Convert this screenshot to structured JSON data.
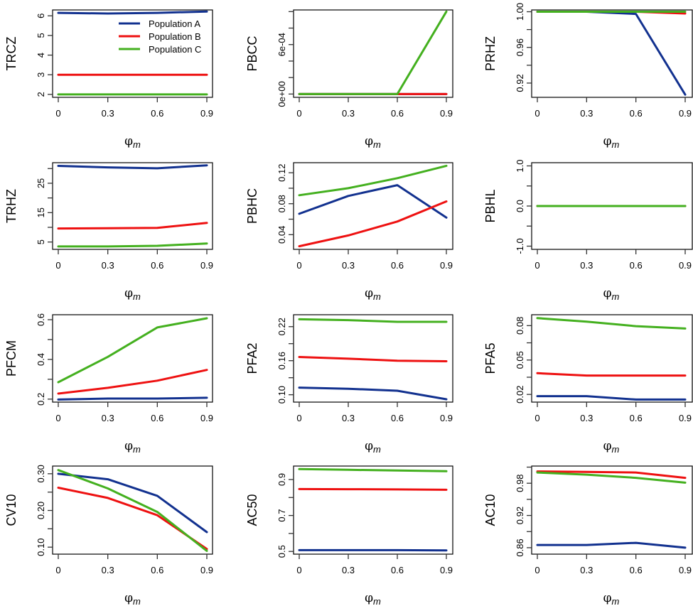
{
  "colors": {
    "Population A": "#12318f",
    "Population B": "#ee1111",
    "Population C": "#44b01f"
  },
  "legend": {
    "entries": [
      "Population A",
      "Population B",
      "Population C"
    ],
    "panel": "TRCZ",
    "position": "top-right"
  },
  "chart_data": [
    {
      "type": "line",
      "title": "",
      "ylabel": "TRCZ",
      "xlabel": "φm",
      "x": [
        0,
        0.3,
        0.6,
        0.9
      ],
      "xticks": [
        "0",
        "0.3",
        "0.6",
        "0.9"
      ],
      "ylim": [
        1.85,
        6.3
      ],
      "yticks": [
        2,
        3,
        4,
        5,
        6
      ],
      "yticklabels": [
        "2",
        "3",
        "4",
        "5",
        "6"
      ],
      "series": [
        {
          "name": "Population A",
          "values": [
            6.15,
            6.12,
            6.15,
            6.22
          ]
        },
        {
          "name": "Population B",
          "values": [
            3.0,
            3.0,
            3.0,
            3.0
          ]
        },
        {
          "name": "Population C",
          "values": [
            2.0,
            2.0,
            2.0,
            2.0
          ]
        }
      ]
    },
    {
      "type": "line",
      "title": "",
      "ylabel": "PBCC",
      "xlabel": "φm",
      "x": [
        0,
        0.3,
        0.6,
        0.9
      ],
      "xticks": [
        "0",
        "0.3",
        "0.6",
        "0.9"
      ],
      "ylim": [
        -4e-05,
        0.00102
      ],
      "yticks": [
        0,
        0.0002,
        0.0004,
        0.0006,
        0.0008,
        0.001
      ],
      "yticklabels": [
        "0e+00",
        "",
        "",
        "6e-04",
        "",
        ""
      ],
      "series": [
        {
          "name": "Population A",
          "values": [
            0,
            0,
            0,
            0
          ]
        },
        {
          "name": "Population B",
          "values": [
            0,
            0,
            0,
            0
          ]
        },
        {
          "name": "Population C",
          "values": [
            0,
            0,
            0,
            0.001
          ]
        }
      ]
    },
    {
      "type": "line",
      "title": "",
      "ylabel": "PRHZ",
      "xlabel": "φm",
      "x": [
        0,
        0.3,
        0.6,
        0.9
      ],
      "xticks": [
        "0",
        "0.3",
        "0.6",
        "0.9"
      ],
      "ylim": [
        0.904,
        1.002
      ],
      "yticks": [
        0.92,
        0.94,
        0.96,
        0.98,
        1.0
      ],
      "yticklabels": [
        "0.92",
        "",
        "0.96",
        "",
        "1.00"
      ],
      "series": [
        {
          "name": "Population A",
          "values": [
            1.0,
            1.0,
            0.9975,
            0.907
          ]
        },
        {
          "name": "Population B",
          "values": [
            1.0,
            1.0,
            1.0,
            0.998
          ]
        },
        {
          "name": "Population C",
          "values": [
            1.0,
            1.0,
            1.0,
            1.0
          ]
        }
      ]
    },
    {
      "type": "line",
      "title": "",
      "ylabel": "TRHZ",
      "xlabel": "φm",
      "x": [
        0,
        0.3,
        0.6,
        0.9
      ],
      "xticks": [
        "0",
        "0.3",
        "0.6",
        "0.9"
      ],
      "ylim": [
        2.5,
        32.0
      ],
      "yticks": [
        5,
        10,
        15,
        20,
        25,
        30
      ],
      "yticklabels": [
        "5",
        "",
        "15",
        "",
        "25",
        ""
      ],
      "series": [
        {
          "name": "Population A",
          "values": [
            30.9,
            30.4,
            30.1,
            31.1
          ]
        },
        {
          "name": "Population B",
          "values": [
            9.6,
            9.7,
            9.8,
            11.5
          ]
        },
        {
          "name": "Population C",
          "values": [
            3.5,
            3.5,
            3.7,
            4.5
          ]
        }
      ]
    },
    {
      "type": "line",
      "title": "",
      "ylabel": "PBHC",
      "xlabel": "φm",
      "x": [
        0,
        0.3,
        0.6,
        0.9
      ],
      "xticks": [
        "0",
        "0.3",
        "0.6",
        "0.9"
      ],
      "ylim": [
        0.021,
        0.133
      ],
      "yticks": [
        0.04,
        0.06,
        0.08,
        0.1,
        0.12
      ],
      "yticklabels": [
        "0.04",
        "",
        "0.08",
        "",
        "0.12"
      ],
      "series": [
        {
          "name": "Population A",
          "values": [
            0.067,
            0.09,
            0.104,
            0.062
          ]
        },
        {
          "name": "Population B",
          "values": [
            0.025,
            0.039,
            0.057,
            0.083
          ]
        },
        {
          "name": "Population C",
          "values": [
            0.091,
            0.1,
            0.113,
            0.129
          ]
        }
      ]
    },
    {
      "type": "line",
      "title": "",
      "ylabel": "PBHL",
      "xlabel": "φm",
      "x": [
        0,
        0.3,
        0.6,
        0.9
      ],
      "xticks": [
        "0",
        "0.3",
        "0.6",
        "0.9"
      ],
      "ylim": [
        -1.08,
        1.08
      ],
      "yticks": [
        -1.0,
        -0.5,
        0.0,
        0.5,
        1.0
      ],
      "yticklabels": [
        "-1.0",
        "",
        "0.0",
        "",
        "1.0"
      ],
      "series": [
        {
          "name": "Population A",
          "values": [
            0,
            0,
            0,
            0
          ]
        },
        {
          "name": "Population B",
          "values": [
            0,
            0,
            0,
            0
          ]
        },
        {
          "name": "Population C",
          "values": [
            0,
            0,
            0,
            0
          ]
        }
      ]
    },
    {
      "type": "line",
      "title": "",
      "ylabel": "PFCM",
      "xlabel": "φm",
      "x": [
        0,
        0.3,
        0.6,
        0.9
      ],
      "xticks": [
        "0",
        "0.3",
        "0.6",
        "0.9"
      ],
      "ylim": [
        0.185,
        0.625
      ],
      "yticks": [
        0.2,
        0.3,
        0.4,
        0.5,
        0.6
      ],
      "yticklabels": [
        "0.2",
        "",
        "0.4",
        "",
        "0.6"
      ],
      "series": [
        {
          "name": "Population A",
          "values": [
            0.198,
            0.203,
            0.203,
            0.207
          ]
        },
        {
          "name": "Population B",
          "values": [
            0.228,
            0.257,
            0.293,
            0.347
          ]
        },
        {
          "name": "Population C",
          "values": [
            0.285,
            0.413,
            0.561,
            0.607
          ]
        }
      ]
    },
    {
      "type": "line",
      "title": "",
      "ylabel": "PFA2",
      "xlabel": "φm",
      "x": [
        0,
        0.3,
        0.6,
        0.9
      ],
      "xticks": [
        "0",
        "0.3",
        "0.6",
        "0.9"
      ],
      "ylim": [
        0.087,
        0.241
      ],
      "yticks": [
        0.1,
        0.13,
        0.16,
        0.19,
        0.22
      ],
      "yticklabels": [
        "0.10",
        "",
        "0.16",
        "",
        "0.22"
      ],
      "series": [
        {
          "name": "Population A",
          "values": [
            0.1125,
            0.1105,
            0.107,
            0.092
          ]
        },
        {
          "name": "Population B",
          "values": [
            0.1665,
            0.1635,
            0.16,
            0.159
          ]
        },
        {
          "name": "Population C",
          "values": [
            0.233,
            0.2315,
            0.2285,
            0.2285
          ]
        }
      ]
    },
    {
      "type": "line",
      "title": "",
      "ylabel": "PFA5",
      "xlabel": "φm",
      "x": [
        0,
        0.3,
        0.6,
        0.9
      ],
      "xticks": [
        "0",
        "0.3",
        "0.6",
        "0.9"
      ],
      "ylim": [
        0.0133,
        0.0895
      ],
      "yticks": [
        0.02,
        0.035,
        0.05,
        0.065,
        0.08
      ],
      "yticklabels": [
        "0.02",
        "",
        "0.05",
        "",
        "0.08"
      ],
      "series": [
        {
          "name": "Population A",
          "values": [
            0.0185,
            0.0185,
            0.0155,
            0.0155
          ]
        },
        {
          "name": "Population B",
          "values": [
            0.0385,
            0.0365,
            0.0365,
            0.0365
          ]
        },
        {
          "name": "Population C",
          "values": [
            0.0865,
            0.0835,
            0.0795,
            0.0775
          ]
        }
      ]
    },
    {
      "type": "line",
      "title": "",
      "ylabel": "CV10",
      "xlabel": "φm",
      "x": [
        0,
        0.3,
        0.6,
        0.9
      ],
      "xticks": [
        "0",
        "0.3",
        "0.6",
        "0.9"
      ],
      "ylim": [
        0.081,
        0.321
      ],
      "yticks": [
        0.1,
        0.15,
        0.2,
        0.25,
        0.3
      ],
      "yticklabels": [
        "0.10",
        "",
        "0.20",
        "",
        "0.30"
      ],
      "series": [
        {
          "name": "Population A",
          "values": [
            0.3,
            0.285,
            0.24,
            0.141
          ]
        },
        {
          "name": "Population B",
          "values": [
            0.262,
            0.234,
            0.187,
            0.095
          ]
        },
        {
          "name": "Population C",
          "values": [
            0.31,
            0.26,
            0.196,
            0.09
          ]
        }
      ]
    },
    {
      "type": "line",
      "title": "",
      "ylabel": "AC50",
      "xlabel": "φm",
      "x": [
        0,
        0.3,
        0.6,
        0.9
      ],
      "xticks": [
        "0",
        "0.3",
        "0.6",
        "0.9"
      ],
      "ylim": [
        0.485,
        0.975
      ],
      "yticks": [
        0.5,
        0.6,
        0.7,
        0.8,
        0.9
      ],
      "yticklabels": [
        "0.5",
        "",
        "0.7",
        "",
        "0.9"
      ],
      "series": [
        {
          "name": "Population A",
          "values": [
            0.507,
            0.507,
            0.507,
            0.506
          ]
        },
        {
          "name": "Population B",
          "values": [
            0.847,
            0.846,
            0.845,
            0.843
          ]
        },
        {
          "name": "Population C",
          "values": [
            0.958,
            0.954,
            0.95,
            0.946
          ]
        }
      ]
    },
    {
      "type": "line",
      "title": "",
      "ylabel": "AC10",
      "xlabel": "φm",
      "x": [
        0,
        0.3,
        0.6,
        0.9
      ],
      "xticks": [
        "0",
        "0.3",
        "0.6",
        "0.9"
      ],
      "ylim": [
        0.848,
        1.012
      ],
      "yticks": [
        0.86,
        0.89,
        0.92,
        0.95,
        0.98,
        1.01
      ],
      "yticklabels": [
        "0.86",
        "",
        "0.92",
        "",
        "0.98",
        ""
      ],
      "series": [
        {
          "name": "Population A",
          "values": [
            0.865,
            0.865,
            0.869,
            0.86
          ]
        },
        {
          "name": "Population B",
          "values": [
            1.002,
            1.001,
            1.0,
            0.99
          ]
        },
        {
          "name": "Population C",
          "values": [
            1.0,
            0.996,
            0.99,
            0.981
          ]
        }
      ]
    }
  ]
}
